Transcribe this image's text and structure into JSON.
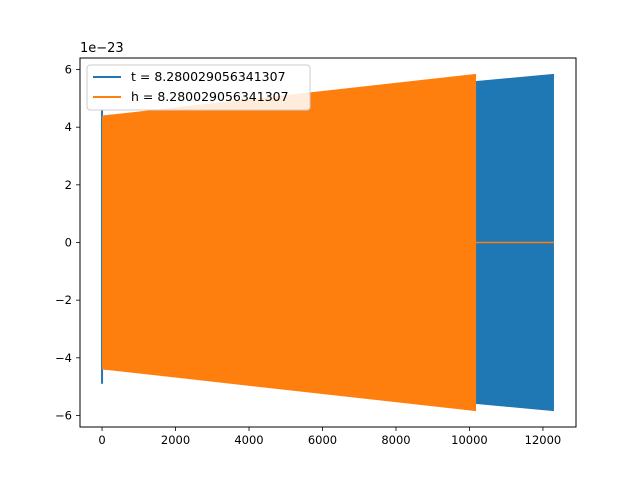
{
  "chart_data": {
    "type": "line",
    "title": "",
    "xlabel": "",
    "ylabel": "",
    "y_offset_label": "1e−23",
    "xlim": [
      -600,
      12900
    ],
    "ylim": [
      -6.4,
      6.4
    ],
    "x_ticks": [
      0,
      2000,
      4000,
      6000,
      8000,
      10000,
      12000
    ],
    "x_tick_labels": [
      "0",
      "2000",
      "4000",
      "6000",
      "8000",
      "10000",
      "12000"
    ],
    "y_ticks": [
      -6,
      -4,
      -2,
      0,
      2,
      4,
      6
    ],
    "y_tick_labels": [
      "−6",
      "−4",
      "−2",
      "0",
      "2",
      "4",
      "6"
    ],
    "grid": false,
    "legend_position": "top-left",
    "series": [
      {
        "name": "t = 8.280029056341307",
        "color": "#1f77b4",
        "x_start": 0,
        "x_end": 12300,
        "envelope": {
          "x": [
            0,
            12300
          ],
          "upper": [
            4.4,
            5.85
          ],
          "lower": [
            -4.4,
            -5.85
          ]
        },
        "initial_spike": [
          4.6,
          -4.9
        ]
      },
      {
        "name": "h = 8.280029056341307",
        "color": "#ff7f0e",
        "x_start": 0,
        "x_end": 10180,
        "envelope": {
          "x": [
            0,
            10180
          ],
          "upper": [
            4.4,
            5.85
          ],
          "lower": [
            -4.4,
            -5.85
          ]
        },
        "zero_tail": [
          10180,
          12300
        ]
      }
    ]
  }
}
